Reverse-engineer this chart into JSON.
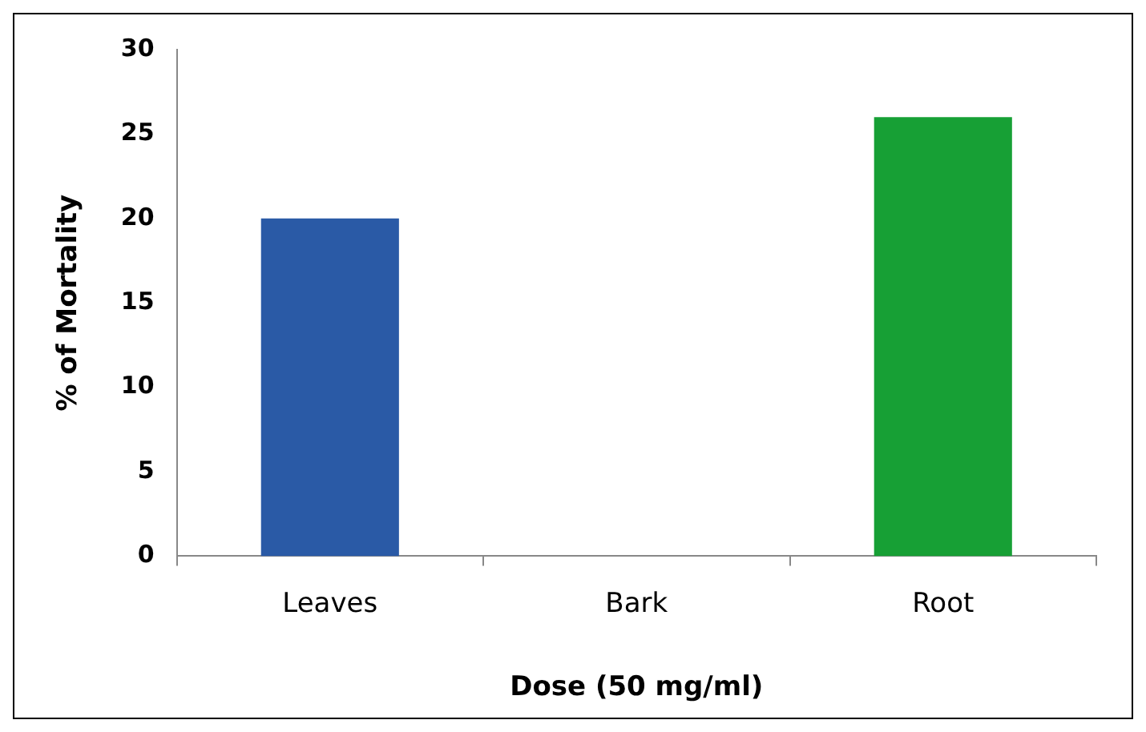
{
  "chart_data": {
    "type": "bar",
    "xlabel": "Dose (50 mg/ml)",
    "ylabel": "% of Mortality",
    "categories": [
      "Leaves",
      "Bark",
      "Root"
    ],
    "values": [
      20,
      0,
      26
    ],
    "colors": [
      "#2a5aa6",
      "#2a5aa6",
      "#17a035"
    ],
    "ylim": [
      0,
      30
    ],
    "yticks": [
      0,
      5,
      10,
      15,
      20,
      25,
      30
    ],
    "grid": false,
    "legend": false
  }
}
